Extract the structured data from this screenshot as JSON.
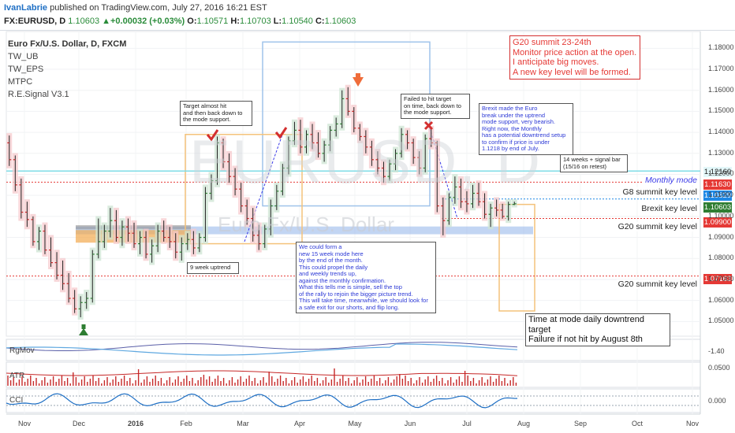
{
  "header": {
    "user": "IvanLabrie",
    "published": "published on TradingView.com, July 27, 2016 16:21 EST",
    "symbol": "FX:EURUSD, D",
    "last": "1.10603",
    "change": "▲+0.00032 (+0.03%)",
    "o_label": "O:",
    "o_val": "1.10571",
    "h_label": "H:",
    "h_val": "1.10703",
    "l_label": "L:",
    "l_val": "1.10540",
    "c_label": "C:",
    "c_val": "1.10603"
  },
  "indicators": {
    "title": "Euro Fx/U.S. Dollar, D, FXCM",
    "items": [
      "TW_UB",
      "TW_EPS",
      "MTPC",
      "R.E.Signal V3.1"
    ]
  },
  "watermark": {
    "symbol": "EURUSD, D",
    "name": "Euro Fx/U.S. Dollar"
  },
  "notes": {
    "target_hit": "Target almost hit\nand then back down to\nthe mode support.",
    "failed": "Failed to hit target\non time, back down to\nthe mode support.",
    "brexit": "Brexit made the Euro\nbreak under the uptrend\nmode support, very bearish.\nRight now, the Monthly\nhas a potential downtrend setup\nto confirm if price is under\n1.1218 by end of July.",
    "weeks": "14 weeks + signal bar\n(15/16 on retest)",
    "uptrend": "9 week uptrend",
    "mode": "We could form a\nnew 15 week mode here\nby the end of the month.\nThis could propel the daily\nand weekly trends up,\nagainst the monthly confirmation.\nWhat this tells me is simple, sell the top\nof the rally to rejoin the bigger picture trend.\nThis will take time, meanwhile, we should look for\na safe exit for our shorts, and flip long.",
    "g20": "G20 summit 23-24th\nMonitor price action at the open.\nI anticipate big moves.\nA new key level will be formed.",
    "target": "Time at mode daily downtrend target\nFailure if not hit by August 8th"
  },
  "levels": [
    {
      "label": "Monthly mode",
      "tag": "1.11630",
      "color": "#e53935"
    },
    {
      "label": "G8 summit key level",
      "tag": "1.10829",
      "color": "#1e88e5"
    },
    {
      "label": "Brexit key level",
      "tag": "1.10603",
      "color": "#2e7d32"
    },
    {
      "label": "G20 summit key level",
      "tag": "1.09900",
      "color": "#e53935"
    },
    {
      "label": "G20 summit key level",
      "tag": "1.07163",
      "color": "#e53935"
    }
  ],
  "top_tag": {
    "value": "1.12160",
    "color": "#e3f7f9"
  },
  "panes": [
    {
      "name": "RgMov",
      "value": "-1.40"
    },
    {
      "name": "ATR",
      "value": "0.0500"
    },
    {
      "name": "CCI",
      "value": "0.000"
    }
  ],
  "chart_data": {
    "type": "candlestick",
    "title": "Euro Fx/U.S. Dollar, D, FXCM",
    "y_ticks": [
      "1.18000",
      "1.17000",
      "1.16000",
      "1.15000",
      "1.14000",
      "1.13000",
      "1.12000",
      "1.11000",
      "1.10000",
      "1.09000",
      "1.08000",
      "1.07000",
      "1.06000",
      "1.05000"
    ],
    "x_ticks": [
      "Nov",
      "Dec",
      "2016",
      "Feb",
      "Mar",
      "Apr",
      "May",
      "Jun",
      "Jul",
      "Aug",
      "Sep",
      "Oct",
      "Nov"
    ],
    "ylim": [
      1.043,
      1.188
    ],
    "candles": [
      [
        1.135,
        1.1385,
        1.124,
        1.127
      ],
      [
        1.127,
        1.129,
        1.112,
        1.115
      ],
      [
        1.115,
        1.118,
        1.099,
        1.102
      ],
      [
        1.102,
        1.107,
        1.095,
        1.0985
      ],
      [
        1.0985,
        1.1,
        1.086,
        1.088
      ],
      [
        1.088,
        1.095,
        1.084,
        1.093
      ],
      [
        1.093,
        1.096,
        1.082,
        1.084
      ],
      [
        1.084,
        1.09,
        1.076,
        1.078
      ],
      [
        1.078,
        1.083,
        1.07,
        1.072
      ],
      [
        1.072,
        1.079,
        1.065,
        1.068
      ],
      [
        1.068,
        1.073,
        1.059,
        1.061
      ],
      [
        1.061,
        1.065,
        1.054,
        1.056
      ],
      [
        1.056,
        1.062,
        1.052,
        1.059
      ],
      [
        1.059,
        1.064,
        1.056,
        1.061
      ],
      [
        1.061,
        1.084,
        1.059,
        1.082
      ],
      [
        1.082,
        1.099,
        1.08,
        1.088
      ],
      [
        1.088,
        1.096,
        1.085,
        1.093
      ],
      [
        1.093,
        1.104,
        1.09,
        1.098
      ],
      [
        1.098,
        1.103,
        1.088,
        1.09
      ],
      [
        1.09,
        1.098,
        1.086,
        1.095
      ],
      [
        1.095,
        1.099,
        1.088,
        1.092
      ],
      [
        1.092,
        1.097,
        1.085,
        1.087
      ],
      [
        1.087,
        1.093,
        1.082,
        1.09
      ],
      [
        1.09,
        1.093,
        1.08,
        1.082
      ],
      [
        1.082,
        1.089,
        1.078,
        1.086
      ],
      [
        1.086,
        1.096,
        1.083,
        1.093
      ],
      [
        1.093,
        1.098,
        1.088,
        1.09
      ],
      [
        1.09,
        1.095,
        1.085,
        1.088
      ],
      [
        1.088,
        1.092,
        1.08,
        1.083
      ],
      [
        1.083,
        1.09,
        1.079,
        1.087
      ],
      [
        1.087,
        1.092,
        1.084,
        1.089
      ],
      [
        1.089,
        1.093,
        1.082,
        1.085
      ],
      [
        1.085,
        1.092,
        1.083,
        1.09
      ],
      [
        1.09,
        1.114,
        1.088,
        1.111
      ],
      [
        1.111,
        1.12,
        1.108,
        1.117
      ],
      [
        1.117,
        1.138,
        1.115,
        1.135
      ],
      [
        1.135,
        1.137,
        1.123,
        1.126
      ],
      [
        1.126,
        1.13,
        1.116,
        1.119
      ],
      [
        1.119,
        1.123,
        1.11,
        1.113
      ],
      [
        1.113,
        1.116,
        1.102,
        1.105
      ],
      [
        1.105,
        1.108,
        1.096,
        1.099
      ],
      [
        1.099,
        1.104,
        1.088,
        1.091
      ],
      [
        1.091,
        1.096,
        1.084,
        1.087
      ],
      [
        1.087,
        1.096,
        1.085,
        1.094
      ],
      [
        1.094,
        1.108,
        1.091,
        1.105
      ],
      [
        1.105,
        1.115,
        1.103,
        1.112
      ],
      [
        1.112,
        1.125,
        1.11,
        1.123
      ],
      [
        1.123,
        1.138,
        1.12,
        1.136
      ],
      [
        1.136,
        1.145,
        1.134,
        1.141
      ],
      [
        1.141,
        1.146,
        1.13,
        1.133
      ],
      [
        1.133,
        1.141,
        1.13,
        1.139
      ],
      [
        1.139,
        1.144,
        1.132,
        1.135
      ],
      [
        1.135,
        1.14,
        1.128,
        1.13
      ],
      [
        1.13,
        1.136,
        1.126,
        1.134
      ],
      [
        1.134,
        1.143,
        1.131,
        1.141
      ],
      [
        1.141,
        1.147,
        1.138,
        1.144
      ],
      [
        1.144,
        1.16,
        1.142,
        1.156
      ],
      [
        1.156,
        1.1615,
        1.148,
        1.15
      ],
      [
        1.15,
        1.152,
        1.14,
        1.142
      ],
      [
        1.142,
        1.144,
        1.136,
        1.138
      ],
      [
        1.138,
        1.141,
        1.13,
        1.133
      ],
      [
        1.133,
        1.136,
        1.124,
        1.127
      ],
      [
        1.127,
        1.131,
        1.12,
        1.123
      ],
      [
        1.123,
        1.126,
        1.116,
        1.119
      ],
      [
        1.119,
        1.127,
        1.117,
        1.125
      ],
      [
        1.125,
        1.132,
        1.122,
        1.13
      ],
      [
        1.13,
        1.142,
        1.128,
        1.139
      ],
      [
        1.139,
        1.141,
        1.132,
        1.135
      ],
      [
        1.135,
        1.137,
        1.125,
        1.128
      ],
      [
        1.128,
        1.131,
        1.12,
        1.123
      ],
      [
        1.123,
        1.139,
        1.121,
        1.137
      ],
      [
        1.137,
        1.142,
        1.133,
        1.135
      ],
      [
        1.135,
        1.136,
        1.102,
        1.105
      ],
      [
        1.105,
        1.109,
        1.091,
        1.098
      ],
      [
        1.098,
        1.111,
        1.096,
        1.109
      ],
      [
        1.109,
        1.119,
        1.106,
        1.114
      ],
      [
        1.114,
        1.118,
        1.104,
        1.107
      ],
      [
        1.107,
        1.112,
        1.102,
        1.106
      ],
      [
        1.106,
        1.115,
        1.104,
        1.111
      ],
      [
        1.111,
        1.116,
        1.105,
        1.107
      ],
      [
        1.107,
        1.111,
        1.099,
        1.101
      ],
      [
        1.101,
        1.106,
        1.095,
        1.104
      ],
      [
        1.104,
        1.108,
        1.1,
        1.103
      ],
      [
        1.103,
        1.106,
        1.099,
        1.1
      ],
      [
        1.1,
        1.107,
        1.098,
        1.1057
      ],
      [
        1.1057,
        1.107,
        1.1054,
        1.106
      ]
    ]
  }
}
